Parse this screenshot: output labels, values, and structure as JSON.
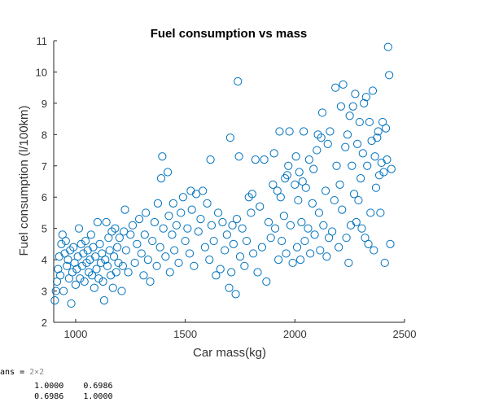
{
  "chart_data": {
    "type": "scatter",
    "title": "Fuel consumption vs mass",
    "xlabel": "Car mass(kg)",
    "ylabel": "Fuel consumption (l/100km)",
    "xlim": [
      900,
      2500
    ],
    "ylim": [
      2,
      11
    ],
    "x_ticks": [
      "1000",
      "1500",
      "2000",
      "2500"
    ],
    "y_ticks": [
      "2",
      "3",
      "4",
      "5",
      "6",
      "7",
      "8",
      "9",
      "10",
      "11"
    ],
    "marker": "open-circle",
    "marker_color": "#0072BD",
    "grid": false,
    "points": [
      [
        905,
        2.7
      ],
      [
        910,
        3.0
      ],
      [
        915,
        3.3
      ],
      [
        920,
        3.7
      ],
      [
        925,
        4.1
      ],
      [
        930,
        3.5
      ],
      [
        935,
        4.5
      ],
      [
        940,
        4.8
      ],
      [
        945,
        3.0
      ],
      [
        950,
        4.2
      ],
      [
        955,
        4.6
      ],
      [
        960,
        3.8
      ],
      [
        965,
        4.0
      ],
      [
        970,
        3.4
      ],
      [
        975,
        4.3
      ],
      [
        980,
        2.6
      ],
      [
        985,
        3.6
      ],
      [
        990,
        4.4
      ],
      [
        995,
        3.9
      ],
      [
        1000,
        3.2
      ],
      [
        1005,
        3.7
      ],
      [
        1010,
        4.1
      ],
      [
        1015,
        5.0
      ],
      [
        1020,
        3.4
      ],
      [
        1025,
        4.5
      ],
      [
        1030,
        3.8
      ],
      [
        1035,
        4.2
      ],
      [
        1040,
        3.3
      ],
      [
        1045,
        4.6
      ],
      [
        1050,
        3.9
      ],
      [
        1055,
        4.3
      ],
      [
        1060,
        3.6
      ],
      [
        1065,
        4.0
      ],
      [
        1070,
        4.8
      ],
      [
        1075,
        3.5
      ],
      [
        1080,
        4.4
      ],
      [
        1085,
        3.1
      ],
      [
        1090,
        4.1
      ],
      [
        1095,
        3.7
      ],
      [
        1100,
        5.2
      ],
      [
        1105,
        3.4
      ],
      [
        1110,
        4.5
      ],
      [
        1115,
        3.9
      ],
      [
        1120,
        4.2
      ],
      [
        1125,
        3.3
      ],
      [
        1130,
        2.7
      ],
      [
        1135,
        4.0
      ],
      [
        1140,
        5.2
      ],
      [
        1145,
        3.8
      ],
      [
        1150,
        4.7
      ],
      [
        1155,
        4.3
      ],
      [
        1160,
        3.5
      ],
      [
        1165,
        4.9
      ],
      [
        1170,
        3.1
      ],
      [
        1175,
        4.1
      ],
      [
        1180,
        5.0
      ],
      [
        1185,
        3.6
      ],
      [
        1190,
        4.4
      ],
      [
        1195,
        3.9
      ],
      [
        1200,
        4.7
      ],
      [
        1210,
        3.0
      ],
      [
        1215,
        3.8
      ],
      [
        1220,
        4.9
      ],
      [
        1225,
        5.6
      ],
      [
        1230,
        4.3
      ],
      [
        1240,
        3.6
      ],
      [
        1250,
        4.8
      ],
      [
        1260,
        5.1
      ],
      [
        1270,
        3.9
      ],
      [
        1280,
        4.5
      ],
      [
        1290,
        5.3
      ],
      [
        1300,
        4.2
      ],
      [
        1310,
        3.5
      ],
      [
        1315,
        4.8
      ],
      [
        1320,
        5.5
      ],
      [
        1330,
        4.0
      ],
      [
        1340,
        3.3
      ],
      [
        1350,
        4.6
      ],
      [
        1360,
        5.2
      ],
      [
        1370,
        3.8
      ],
      [
        1375,
        5.8
      ],
      [
        1385,
        4.4
      ],
      [
        1390,
        6.6
      ],
      [
        1395,
        7.3
      ],
      [
        1400,
        5.0
      ],
      [
        1410,
        4.1
      ],
      [
        1420,
        6.8
      ],
      [
        1425,
        5.4
      ],
      [
        1430,
        3.6
      ],
      [
        1440,
        4.8
      ],
      [
        1445,
        5.8
      ],
      [
        1450,
        4.3
      ],
      [
        1460,
        5.1
      ],
      [
        1470,
        3.9
      ],
      [
        1480,
        5.5
      ],
      [
        1490,
        6.0
      ],
      [
        1500,
        4.6
      ],
      [
        1510,
        5.0
      ],
      [
        1520,
        4.2
      ],
      [
        1525,
        6.2
      ],
      [
        1530,
        5.6
      ],
      [
        1540,
        3.8
      ],
      [
        1550,
        6.1
      ],
      [
        1560,
        4.9
      ],
      [
        1570,
        5.3
      ],
      [
        1580,
        6.2
      ],
      [
        1590,
        4.4
      ],
      [
        1600,
        5.8
      ],
      [
        1610,
        4.0
      ],
      [
        1615,
        7.2
      ],
      [
        1620,
        5.1
      ],
      [
        1630,
        4.6
      ],
      [
        1640,
        3.5
      ],
      [
        1650,
        5.5
      ],
      [
        1660,
        3.7
      ],
      [
        1670,
        5.2
      ],
      [
        1680,
        4.3
      ],
      [
        1690,
        4.8
      ],
      [
        1700,
        3.1
      ],
      [
        1705,
        7.9
      ],
      [
        1710,
        3.6
      ],
      [
        1715,
        5.1
      ],
      [
        1720,
        4.5
      ],
      [
        1730,
        2.9
      ],
      [
        1735,
        5.3
      ],
      [
        1740,
        9.7
      ],
      [
        1745,
        7.3
      ],
      [
        1750,
        4.1
      ],
      [
        1760,
        5.0
      ],
      [
        1770,
        3.8
      ],
      [
        1780,
        4.6
      ],
      [
        1790,
        6.0
      ],
      [
        1800,
        5.5
      ],
      [
        1805,
        6.1
      ],
      [
        1810,
        4.2
      ],
      [
        1820,
        7.2
      ],
      [
        1830,
        3.6
      ],
      [
        1840,
        5.7
      ],
      [
        1850,
        4.4
      ],
      [
        1860,
        7.2
      ],
      [
        1870,
        3.3
      ],
      [
        1880,
        5.2
      ],
      [
        1890,
        4.7
      ],
      [
        1900,
        6.4
      ],
      [
        1905,
        7.4
      ],
      [
        1910,
        5.0
      ],
      [
        1920,
        6.2
      ],
      [
        1925,
        4.0
      ],
      [
        1930,
        8.1
      ],
      [
        1935,
        6.0
      ],
      [
        1940,
        4.6
      ],
      [
        1950,
        5.4
      ],
      [
        1955,
        6.6
      ],
      [
        1960,
        4.2
      ],
      [
        1965,
        6.7
      ],
      [
        1970,
        7.0
      ],
      [
        1975,
        8.1
      ],
      [
        1980,
        5.1
      ],
      [
        1990,
        3.9
      ],
      [
        2000,
        6.4
      ],
      [
        2005,
        7.3
      ],
      [
        2010,
        4.4
      ],
      [
        2015,
        5.9
      ],
      [
        2020,
        6.8
      ],
      [
        2025,
        4.0
      ],
      [
        2030,
        5.2
      ],
      [
        2035,
        6.5
      ],
      [
        2040,
        8.1
      ],
      [
        2045,
        4.6
      ],
      [
        2050,
        6.3
      ],
      [
        2060,
        5.0
      ],
      [
        2065,
        7.2
      ],
      [
        2070,
        4.2
      ],
      [
        2080,
        5.8
      ],
      [
        2085,
        6.9
      ],
      [
        2090,
        4.8
      ],
      [
        2100,
        7.5
      ],
      [
        2105,
        8.0
      ],
      [
        2110,
        5.5
      ],
      [
        2115,
        4.3
      ],
      [
        2120,
        7.9
      ],
      [
        2125,
        8.7
      ],
      [
        2130,
        5.1
      ],
      [
        2140,
        6.2
      ],
      [
        2145,
        4.1
      ],
      [
        2150,
        7.7
      ],
      [
        2155,
        4.7
      ],
      [
        2160,
        8.1
      ],
      [
        2170,
        4.9
      ],
      [
        2180,
        5.9
      ],
      [
        2185,
        9.5
      ],
      [
        2190,
        7.0
      ],
      [
        2200,
        4.4
      ],
      [
        2205,
        6.4
      ],
      [
        2210,
        8.9
      ],
      [
        2215,
        5.6
      ],
      [
        2220,
        9.6
      ],
      [
        2230,
        7.6
      ],
      [
        2235,
        4.7
      ],
      [
        2240,
        8.0
      ],
      [
        2245,
        3.9
      ],
      [
        2250,
        8.6
      ],
      [
        2255,
        5.1
      ],
      [
        2260,
        7.0
      ],
      [
        2265,
        8.9
      ],
      [
        2270,
        6.1
      ],
      [
        2275,
        9.3
      ],
      [
        2280,
        5.2
      ],
      [
        2285,
        7.7
      ],
      [
        2290,
        5.9
      ],
      [
        2295,
        8.4
      ],
      [
        2300,
        6.6
      ],
      [
        2305,
        5.0
      ],
      [
        2310,
        7.4
      ],
      [
        2315,
        9.0
      ],
      [
        2320,
        4.7
      ],
      [
        2325,
        9.2
      ],
      [
        2330,
        7.0
      ],
      [
        2335,
        4.5
      ],
      [
        2340,
        8.4
      ],
      [
        2345,
        5.5
      ],
      [
        2350,
        7.8
      ],
      [
        2355,
        9.4
      ],
      [
        2360,
        4.3
      ],
      [
        2365,
        7.3
      ],
      [
        2370,
        6.3
      ],
      [
        2375,
        7.9
      ],
      [
        2380,
        8.1
      ],
      [
        2385,
        6.7
      ],
      [
        2390,
        5.5
      ],
      [
        2395,
        7.1
      ],
      [
        2400,
        8.4
      ],
      [
        2405,
        6.8
      ],
      [
        2410,
        3.9
      ],
      [
        2415,
        8.2
      ],
      [
        2420,
        7.2
      ],
      [
        2425,
        10.8
      ],
      [
        2430,
        9.9
      ],
      [
        2435,
        4.5
      ],
      [
        2440,
        6.9
      ]
    ]
  },
  "console": {
    "ans_label": "ans =",
    "ans_dims": "2×2",
    "rows": [
      [
        "1.0000",
        "0.6986"
      ],
      [
        "0.6986",
        "1.0000"
      ]
    ]
  }
}
